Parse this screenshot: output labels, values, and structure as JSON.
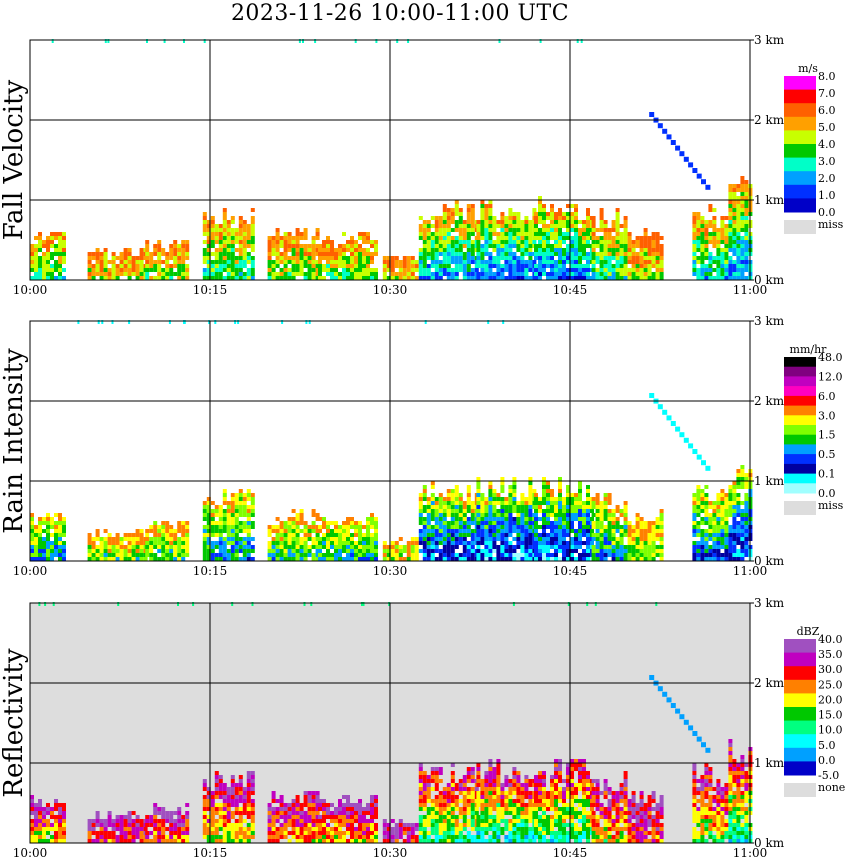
{
  "title": "2023-11-26   10:00-11:00 UTC",
  "time_ticks": [
    "10:00",
    "10:15",
    "10:30",
    "10:45",
    "11:00"
  ],
  "height_ticks": [
    "0 km",
    "1 km",
    "2 km",
    "3 km"
  ],
  "colors": {
    "missing": "#dddddd",
    "grid": "#000000"
  },
  "chart_data": [
    {
      "type": "heatmap",
      "ylabel": "Fall Velocity",
      "xlim": [
        "10:00",
        "11:00"
      ],
      "ylim_km": [
        0,
        3
      ],
      "colorbar": {
        "unit": "m/s",
        "labels": [
          "8.0",
          "7.0",
          "6.0",
          "5.0",
          "4.0",
          "3.0",
          "2.0",
          "1.0",
          "0.0"
        ],
        "colors": [
          "#ff00ff",
          "#ff0000",
          "#ff6000",
          "#ffa000",
          "#c8ff00",
          "#00c800",
          "#00ffc8",
          "#00a0ff",
          "#0030ff",
          "#0000c8"
        ],
        "missing_label": "miss",
        "background": "#ffffff"
      }
    },
    {
      "type": "heatmap",
      "ylabel": "Rain Intensity",
      "xlim": [
        "10:00",
        "11:00"
      ],
      "ylim_km": [
        0,
        3
      ],
      "colorbar": {
        "unit": "mm/hr",
        "labels": [
          "48.0",
          "12.0",
          "6.0",
          "3.0",
          "1.5",
          "0.5",
          "0.1",
          "0.0"
        ],
        "colors": [
          "#000000",
          "#800080",
          "#c000c0",
          "#ff00c0",
          "#ff0000",
          "#ff8000",
          "#ffff00",
          "#80ff00",
          "#00c800",
          "#00a0ff",
          "#0030ff",
          "#0000a0",
          "#00ffff",
          "#a0ffff"
        ],
        "missing_label": "miss",
        "background": "#ffffff"
      }
    },
    {
      "type": "heatmap",
      "ylabel": "Reflectivity",
      "xlim": [
        "10:00",
        "11:00"
      ],
      "ylim_km": [
        0,
        3
      ],
      "colorbar": {
        "unit": "dBZ",
        "labels": [
          "40.0",
          "35.0",
          "30.0",
          "25.0",
          "20.0",
          "15.0",
          "10.0",
          "5.0",
          "0.0",
          "-5.0"
        ],
        "colors": [
          "#a050c0",
          "#c000c0",
          "#ff0000",
          "#ff8000",
          "#ffff00",
          "#00c800",
          "#00ff80",
          "#00ffff",
          "#00a0ff",
          "#0000c8"
        ],
        "missing_label": "none",
        "background": "#dddddd"
      }
    }
  ]
}
